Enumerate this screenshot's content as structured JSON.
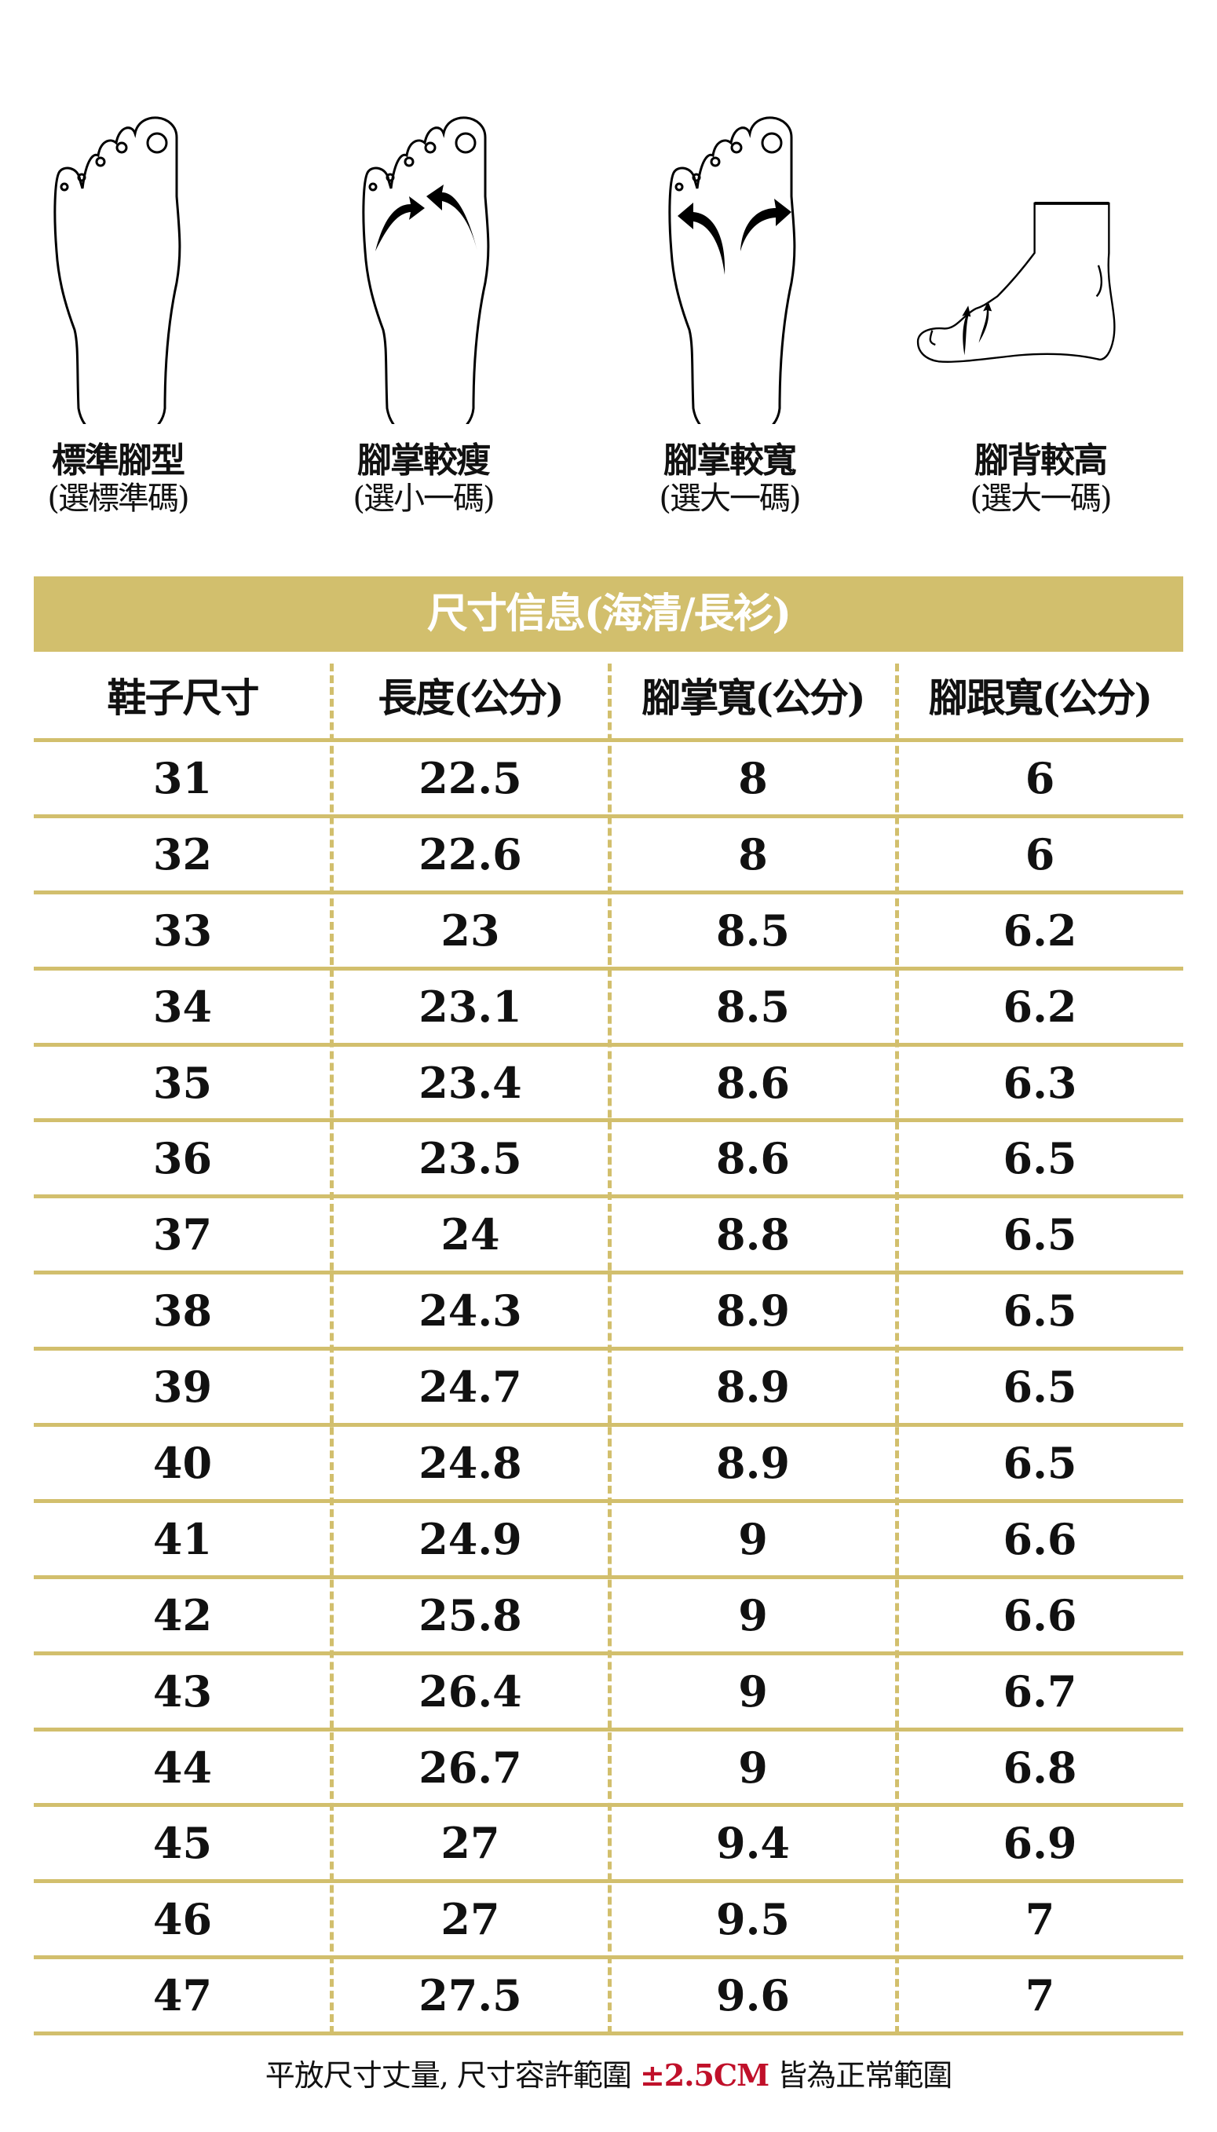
{
  "foot_types": [
    {
      "title": "標準腳型",
      "subtitle": "(選標準碼)",
      "icon": "standard-foot-icon"
    },
    {
      "title": "腳掌較瘦",
      "subtitle": "(選小一碼)",
      "icon": "narrow-foot-icon"
    },
    {
      "title": "腳掌較寬",
      "subtitle": "(選大一碼)",
      "icon": "wide-foot-icon"
    },
    {
      "title": "腳背較高",
      "subtitle": "(選大一碼)",
      "icon": "high-instep-foot-icon"
    }
  ],
  "banner": "尺寸信息(海清/長衫)",
  "colors": {
    "gold": "#d2bf6d",
    "accent_red": "#c0102a"
  },
  "table": {
    "headers": [
      "鞋子尺寸",
      "長度(公分)",
      "腳掌寬(公分)",
      "腳跟寬(公分)"
    ],
    "rows": [
      [
        "31",
        "22.5",
        "8",
        "6"
      ],
      [
        "32",
        "22.6",
        "8",
        "6"
      ],
      [
        "33",
        "23",
        "8.5",
        "6.2"
      ],
      [
        "34",
        "23.1",
        "8.5",
        "6.2"
      ],
      [
        "35",
        "23.4",
        "8.6",
        "6.3"
      ],
      [
        "36",
        "23.5",
        "8.6",
        "6.5"
      ],
      [
        "37",
        "24",
        "8.8",
        "6.5"
      ],
      [
        "38",
        "24.3",
        "8.9",
        "6.5"
      ],
      [
        "39",
        "24.7",
        "8.9",
        "6.5"
      ],
      [
        "40",
        "24.8",
        "8.9",
        "6.5"
      ],
      [
        "41",
        "24.9",
        "9",
        "6.6"
      ],
      [
        "42",
        "25.8",
        "9",
        "6.6"
      ],
      [
        "43",
        "26.4",
        "9",
        "6.7"
      ],
      [
        "44",
        "26.7",
        "9",
        "6.8"
      ],
      [
        "45",
        "27",
        "9.4",
        "6.9"
      ],
      [
        "46",
        "27",
        "9.5",
        "7"
      ],
      [
        "47",
        "27.5",
        "9.6",
        "7"
      ]
    ]
  },
  "note": {
    "before": "平放尺寸丈量, 尺寸容許範圍 ",
    "highlight": "±2.5CM",
    "after": " 皆為正常範圍"
  }
}
